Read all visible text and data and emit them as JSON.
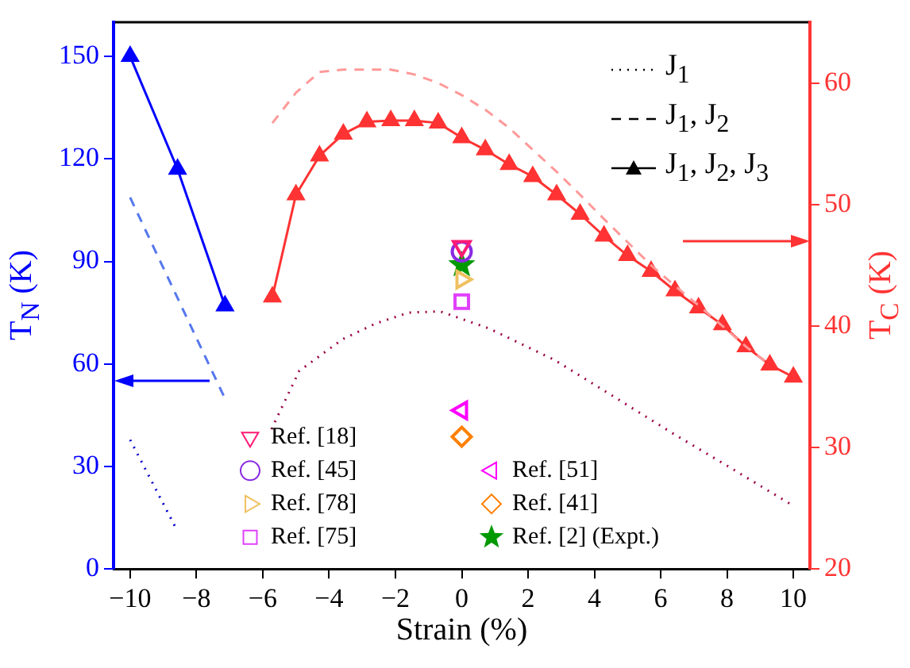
{
  "chart_data": {
    "type": "line",
    "xlabel": "Strain (%)",
    "ylabel": "T$_{N}$ (K)",
    "y2label": "T$_{C}$ (K)",
    "xlim": [
      -10.5,
      10.5
    ],
    "xticks": [
      {
        "value": -10,
        "label": "−10"
      },
      {
        "value": -8,
        "label": "−8"
      },
      {
        "value": -6,
        "label": "−6"
      },
      {
        "value": -4,
        "label": "−4"
      },
      {
        "value": -2,
        "label": "−2"
      },
      0,
      2,
      4,
      6,
      8,
      10
    ],
    "ylim": [
      0,
      160
    ],
    "yticks": [
      0,
      30,
      60,
      90,
      120,
      150
    ],
    "y2lim": [
      20,
      65
    ],
    "y2ticks": [
      20,
      30,
      40,
      50,
      60
    ],
    "grid": false,
    "legend": "bottom left",
    "annotations": [
      "J$_{1}$",
      "J$_{1}$, J$_{2}$",
      "J$_{1}$, J$_{2}$, J$_{3}$"
    ],
    "series": [
      {
        "color": "#0000cc",
        "line_style": "dotted",
        "marker": "none",
        "x": [
          -10,
          -8.6
        ],
        "values": [
          37.8,
          11.6
        ]
      },
      {
        "color": "#5577ee",
        "line_style": "dashed",
        "marker": "none",
        "x": [
          -10,
          -7.16
        ],
        "values": [
          108.7,
          50.3
        ]
      },
      {
        "color": "#0000ff",
        "line_style": "solid",
        "marker": "triangle",
        "x": [
          -10,
          -8.57,
          -7.14
        ],
        "values": [
          150,
          117,
          77
        ]
      },
      {
        "axis": "y2",
        "color": "#990044",
        "line_style": "dotted",
        "marker": "none",
        "x": [
          -5.74,
          -4.9,
          -3.6,
          -2.6,
          -1.6,
          -0.65,
          0.82,
          2.8,
          4.4,
          6.4,
          8,
          10
        ],
        "values": [
          31.5,
          36.3,
          38.9,
          40.2,
          41.1,
          41.2,
          39.8,
          37.2,
          34.5,
          31.1,
          28.5,
          25.2
        ]
      },
      {
        "axis": "y2",
        "color": "#ff9999",
        "line_style": "dashed",
        "marker": "none",
        "x": [
          -5.71,
          -5,
          -4.29,
          -3.57,
          -2.14,
          -1.43,
          -0.71,
          0,
          0.71,
          1.43,
          2.14,
          2.86,
          3.57,
          4.29,
          5,
          5.71,
          6.43,
          7.14,
          7.86,
          8.57,
          9.14
        ],
        "values": [
          56.7,
          59.2,
          60.9,
          61.1,
          61.1,
          60.7,
          60,
          59,
          57.8,
          56.3,
          54.5,
          52.7,
          50.8,
          48.8,
          46.9,
          45,
          43.3,
          41.7,
          40,
          38.3,
          37.1
        ]
      },
      {
        "axis": "y2",
        "color": "#ff3333",
        "line_style": "solid",
        "marker": "triangle",
        "x": [
          -5.71,
          -5,
          -4.29,
          -3.57,
          -2.86,
          -2.14,
          -1.43,
          -0.71,
          0,
          0.71,
          1.43,
          2.14,
          2.86,
          3.57,
          4.29,
          5,
          5.71,
          6.43,
          7.14,
          7.86,
          8.57,
          9.29,
          10
        ],
        "values": [
          42.4,
          50.8,
          54,
          55.8,
          56.8,
          56.9,
          56.9,
          56.7,
          55.5,
          54.5,
          53.3,
          52.3,
          50.8,
          49.2,
          47.4,
          45.8,
          44.5,
          42.9,
          41.5,
          40.1,
          38.3,
          36.8,
          35.8
        ]
      },
      {
        "name": "Ref. [18]",
        "type": "scatter",
        "color": "#ff1a75",
        "marker": "triangle-down",
        "x": [
          0
        ],
        "values": [
          94.4
        ]
      },
      {
        "name": "Ref. [45]",
        "type": "scatter",
        "color": "#8a2be2",
        "marker": "circle",
        "x": [
          0
        ],
        "values": [
          92.9
        ]
      },
      {
        "name": "Ref. [78]",
        "type": "scatter",
        "color": "#f0c060",
        "marker": "triangle-right",
        "x": [
          0
        ],
        "values": [
          84.7
        ]
      },
      {
        "name": "Ref. [75]",
        "type": "scatter",
        "color": "#e040fb",
        "marker": "square",
        "x": [
          0
        ],
        "values": [
          78.2
        ]
      },
      {
        "name": "Ref. [51]",
        "type": "scatter",
        "color": "#ff00ff",
        "marker": "triangle-left",
        "x": [
          0
        ],
        "values": [
          46.4
        ]
      },
      {
        "name": "Ref. [41]",
        "type": "scatter",
        "color": "#ff8000",
        "marker": "diamond",
        "x": [
          0
        ],
        "values": [
          38.7
        ]
      },
      {
        "name": "Ref. [2] (Expt.)",
        "type": "scatter",
        "color": "#009900",
        "marker": "star",
        "x": [
          0
        ],
        "values": [
          89
        ]
      }
    ]
  }
}
